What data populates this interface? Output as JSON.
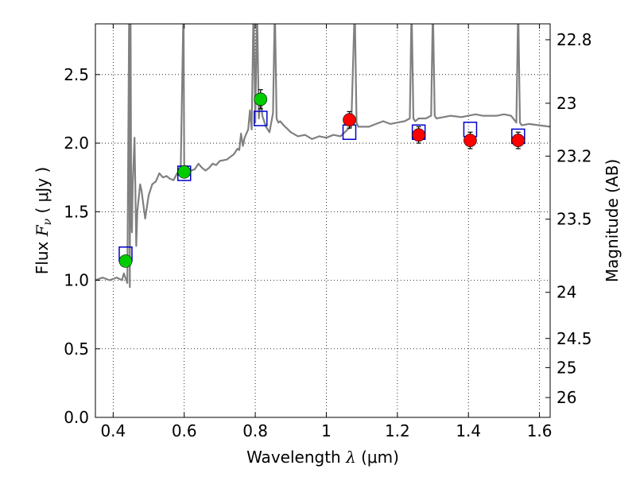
{
  "chart_data": {
    "type": "scatter",
    "xlabel": "Wavelength  λ (μm)",
    "ylabel": "Flux  Fν  ( μJy )",
    "ylabel_parts": {
      "prefix": "Flux  ",
      "symbol": "F",
      "subscript": "ν",
      "suffix": "  ( μJy )"
    },
    "xlabel_parts": {
      "prefix": "Wavelength  ",
      "symbol": "λ",
      "suffix": " (μm)"
    },
    "right_ylabel": "Magnitude (AB)",
    "xlim": [
      0.35,
      1.63
    ],
    "ylim": [
      0.0,
      2.87
    ],
    "grid": true,
    "x_ticks": [
      {
        "value": 0.4,
        "label": "0.4"
      },
      {
        "value": 0.6,
        "label": "0.6"
      },
      {
        "value": 0.8,
        "label": "0.8"
      },
      {
        "value": 1.0,
        "label": "1"
      },
      {
        "value": 1.2,
        "label": "1.2"
      },
      {
        "value": 1.4,
        "label": "1.4"
      },
      {
        "value": 1.6,
        "label": "1.6"
      }
    ],
    "y_ticks": [
      {
        "value": 0.0,
        "label": "0.0"
      },
      {
        "value": 0.5,
        "label": "0.5"
      },
      {
        "value": 1.0,
        "label": "1.0"
      },
      {
        "value": 1.5,
        "label": "1.5"
      },
      {
        "value": 2.0,
        "label": "2.0"
      },
      {
        "value": 2.5,
        "label": "2.5"
      }
    ],
    "right_ticks": [
      {
        "mag": 22.8,
        "label": "22.8"
      },
      {
        "mag": 23.0,
        "label": "23"
      },
      {
        "mag": 23.2,
        "label": "23.2"
      },
      {
        "mag": 23.5,
        "label": "23.5"
      },
      {
        "mag": 24.0,
        "label": "24"
      },
      {
        "mag": 24.5,
        "label": "24.5"
      },
      {
        "mag": 25.0,
        "label": "25"
      },
      {
        "mag": 26.0,
        "label": "26"
      }
    ],
    "series": [
      {
        "kind": "spectrum",
        "color": "#808080",
        "x": [
          0.35,
          0.37,
          0.39,
          0.41,
          0.425,
          0.43,
          0.44,
          0.445,
          0.447,
          0.449,
          0.451,
          0.453,
          0.455,
          0.46,
          0.465,
          0.468,
          0.472,
          0.476,
          0.48,
          0.49,
          0.5,
          0.51,
          0.52,
          0.53,
          0.54,
          0.55,
          0.56,
          0.57,
          0.58,
          0.59,
          0.598,
          0.6,
          0.602,
          0.61,
          0.62,
          0.63,
          0.64,
          0.65,
          0.66,
          0.67,
          0.68,
          0.69,
          0.7,
          0.72,
          0.74,
          0.75,
          0.755,
          0.76,
          0.765,
          0.77,
          0.78,
          0.785,
          0.79,
          0.795,
          0.8,
          0.805,
          0.81,
          0.815,
          0.82,
          0.83,
          0.84,
          0.85,
          0.855,
          0.86,
          0.865,
          0.87,
          0.88,
          0.9,
          0.92,
          0.94,
          0.96,
          0.98,
          1.0,
          1.02,
          1.04,
          1.06,
          1.07,
          1.08,
          1.085,
          1.09,
          1.1,
          1.12,
          1.14,
          1.16,
          1.18,
          1.2,
          1.22,
          1.235,
          1.24,
          1.245,
          1.25,
          1.26,
          1.28,
          1.295,
          1.3,
          1.305,
          1.31,
          1.33,
          1.35,
          1.38,
          1.4,
          1.42,
          1.44,
          1.46,
          1.48,
          1.5,
          1.52,
          1.535,
          1.54,
          1.545,
          1.55,
          1.57,
          1.6,
          1.63
        ],
        "y": [
          1.0,
          1.02,
          1.0,
          1.02,
          1.0,
          1.05,
          0.98,
          3.0,
          0.95,
          3.0,
          1.45,
          1.35,
          1.7,
          2.04,
          1.25,
          1.5,
          1.6,
          1.7,
          1.65,
          1.45,
          1.62,
          1.7,
          1.72,
          1.78,
          1.75,
          1.76,
          1.74,
          1.73,
          1.78,
          1.8,
          3.0,
          1.85,
          1.8,
          1.78,
          1.8,
          1.81,
          1.85,
          1.82,
          1.8,
          1.82,
          1.85,
          1.84,
          1.87,
          1.88,
          1.92,
          1.96,
          1.95,
          2.07,
          1.98,
          2.04,
          2.1,
          2.24,
          2.1,
          3.0,
          2.15,
          3.0,
          2.18,
          2.35,
          2.2,
          2.12,
          2.08,
          2.22,
          3.0,
          2.18,
          2.15,
          2.16,
          2.13,
          2.08,
          2.05,
          2.06,
          2.03,
          2.05,
          2.04,
          2.06,
          2.05,
          2.1,
          2.12,
          3.0,
          2.15,
          2.12,
          2.12,
          2.12,
          2.14,
          2.16,
          2.14,
          2.15,
          2.16,
          2.18,
          3.0,
          2.18,
          2.16,
          2.18,
          2.18,
          2.2,
          3.0,
          2.2,
          2.18,
          2.19,
          2.2,
          2.19,
          2.2,
          2.21,
          2.2,
          2.2,
          2.2,
          2.21,
          2.2,
          2.15,
          3.0,
          2.15,
          2.13,
          2.14,
          2.13,
          2.12
        ]
      },
      {
        "kind": "model_points",
        "name": "",
        "color": "#0000cc",
        "marker": "open-square",
        "x": [
          0.435,
          0.6,
          0.815,
          1.065,
          1.26,
          1.405,
          1.54
        ],
        "y": [
          1.19,
          1.78,
          2.18,
          2.08,
          2.08,
          2.1,
          2.05
        ]
      },
      {
        "kind": "observed_points",
        "name": "",
        "color": "#00cc00",
        "marker": "circle",
        "x": [
          0.435,
          0.6,
          0.815
        ],
        "y": [
          1.14,
          1.79,
          2.32
        ],
        "err": [
          0.03,
          0.04,
          0.07
        ]
      },
      {
        "kind": "observed_points",
        "name": "",
        "color": "#ff0000",
        "marker": "circle",
        "x": [
          1.065,
          1.26,
          1.405,
          1.54
        ],
        "y": [
          2.17,
          2.06,
          2.02,
          2.02
        ],
        "err": [
          0.06,
          0.06,
          0.06,
          0.06
        ]
      }
    ]
  }
}
